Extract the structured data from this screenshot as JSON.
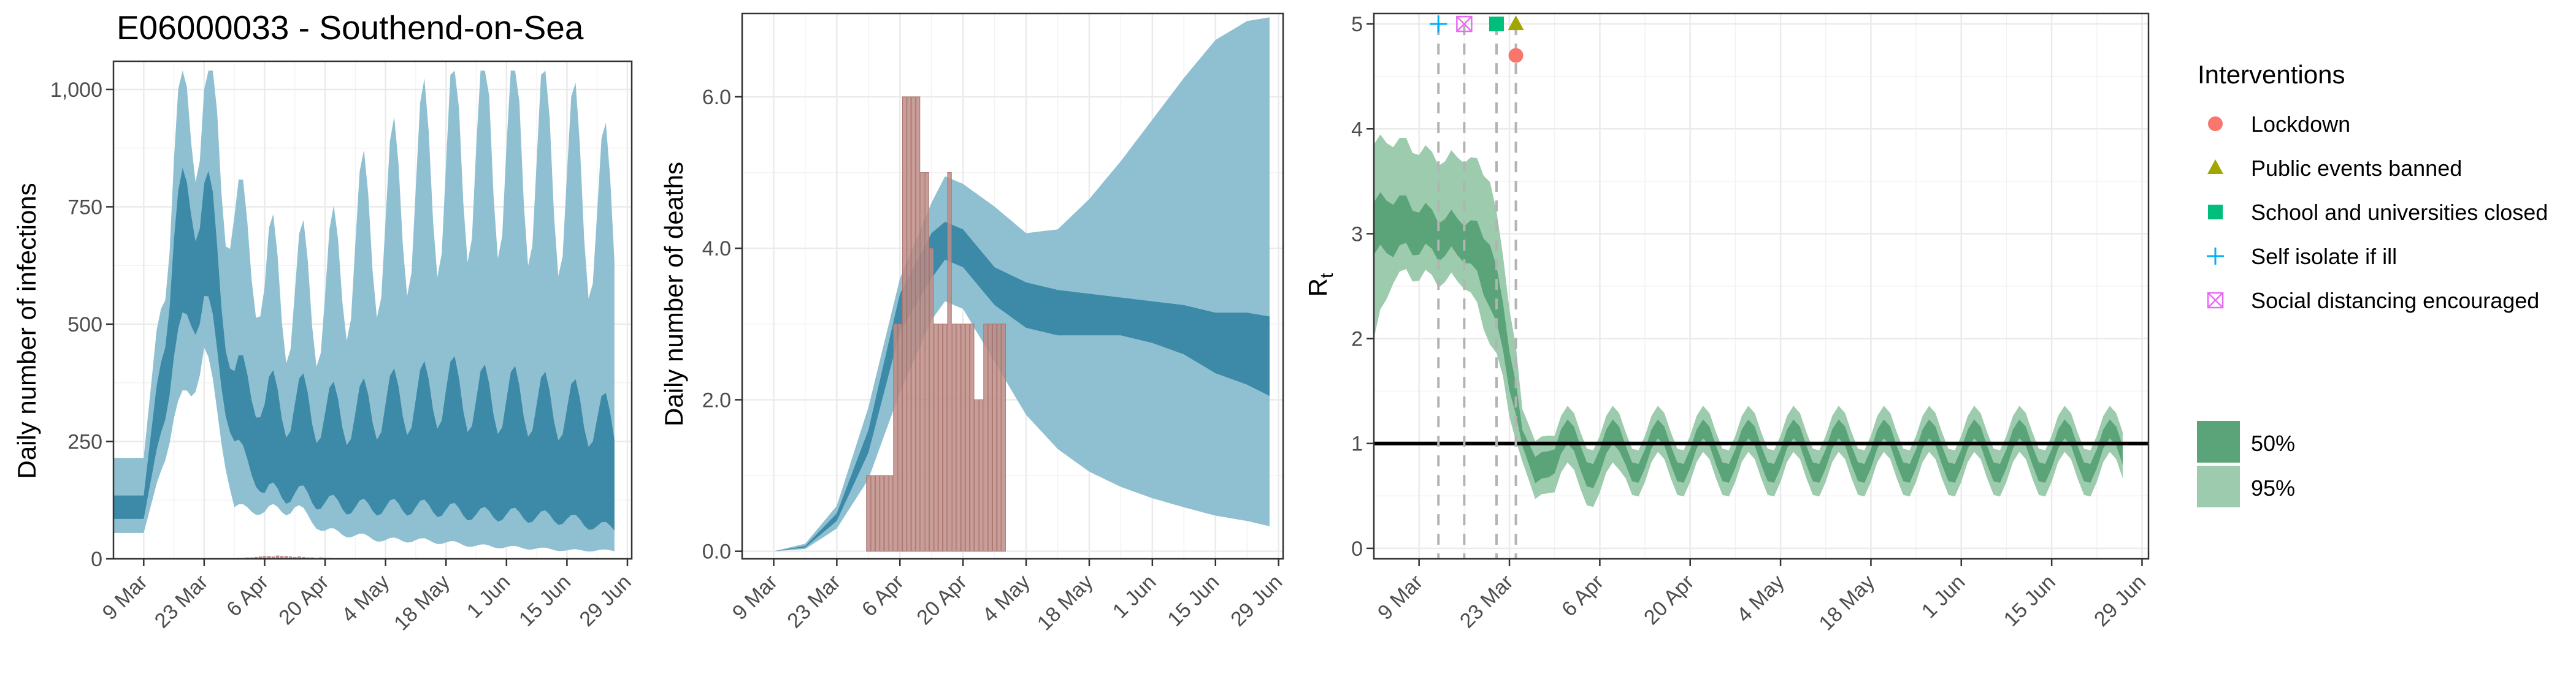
{
  "title": "E06000033 - Southend-on-Sea",
  "x_ticks": [
    "9 Mar",
    "23 Mar",
    "6 Apr",
    "20 Apr",
    "4 May",
    "18 May",
    "1 Jun",
    "15 Jun",
    "29 Jun"
  ],
  "colors": {
    "band95": "#8fc0d1",
    "band50": "#3d8aa8",
    "bars": "#bf8c86",
    "rt95": "#9ccbad",
    "rt50": "#5ba378",
    "panel_border": "#333333",
    "grid": "#ebebeb",
    "lockdown": "#f8766d",
    "public_events": "#a3a500",
    "schools": "#00bf7d",
    "self_isolate": "#00b0f6",
    "social_distancing": "#e76bf3"
  },
  "legend": {
    "interventions_title": "Interventions",
    "interventions": [
      {
        "label": "Lockdown",
        "icon": "circle-icon",
        "color_key": "lockdown"
      },
      {
        "label": "Public events banned",
        "icon": "triangle-icon",
        "color_key": "public_events"
      },
      {
        "label": "School and universities closed",
        "icon": "square-icon",
        "color_key": "schools"
      },
      {
        "label": "Self isolate if ill",
        "icon": "plus-icon",
        "color_key": "self_isolate"
      },
      {
        "label": "Social distancing encouraged",
        "icon": "boxed-x-icon",
        "color_key": "social_distancing"
      }
    ],
    "bands": [
      {
        "label": "50%",
        "color_key": "rt50"
      },
      {
        "label": "95%",
        "color_key": "rt95"
      }
    ]
  },
  "chart_data": [
    {
      "id": "infections",
      "type": "area",
      "title": "E06000033 - Southend-on-Sea",
      "xlabel": "",
      "ylabel": "Daily number of infections",
      "x_range": [
        "2020-03-02",
        "2020-06-30"
      ],
      "ylim": [
        0,
        1060
      ],
      "y_ticks": [
        0,
        250,
        500,
        750,
        1000
      ],
      "y_tick_labels": [
        "0",
        "250",
        "500",
        "750",
        "1,000"
      ],
      "grid": true,
      "bands_weekly_anchor": {
        "dates": [
          "2020-03-02",
          "2020-03-09",
          "2020-03-16",
          "2020-03-20",
          "2020-03-23",
          "2020-03-30",
          "2020-04-06",
          "2020-04-13",
          "2020-04-20",
          "2020-04-27",
          "2020-05-04",
          "2020-05-11",
          "2020-05-18",
          "2020-05-25",
          "2020-06-01",
          "2020-06-08",
          "2020-06-15",
          "2020-06-22",
          "2020-06-26"
        ],
        "lo95": [
          55,
          55,
          300,
          360,
          450,
          110,
          100,
          110,
          60,
          50,
          40,
          40,
          35,
          28,
          25,
          22,
          18,
          18,
          17
        ],
        "hi95": [
          215,
          215,
          850,
          960,
          1000,
          730,
          580,
          570,
          560,
          670,
          720,
          790,
          840,
          880,
          880,
          850,
          820,
          740,
          720
        ],
        "lo50": [
          85,
          85,
          430,
          520,
          560,
          250,
          140,
          140,
          120,
          110,
          110,
          110,
          105,
          95,
          95,
          90,
          85,
          70,
          65
        ],
        "hi50": [
          135,
          135,
          680,
          780,
          800,
          400,
          330,
          330,
          310,
          310,
          330,
          340,
          360,
          340,
          340,
          330,
          320,
          300,
          280
        ]
      },
      "deaths_bars": {
        "dates": [
          "2020-03-30",
          "2020-03-31",
          "2020-04-01",
          "2020-04-02",
          "2020-04-03",
          "2020-04-04",
          "2020-04-05",
          "2020-04-06",
          "2020-04-07",
          "2020-04-08",
          "2020-04-09",
          "2020-04-10",
          "2020-04-11",
          "2020-04-12",
          "2020-04-13",
          "2020-04-14",
          "2020-04-15",
          "2020-04-16",
          "2020-04-17",
          "2020-04-18",
          "2020-04-19",
          "2020-04-20",
          "2020-04-21",
          "2020-04-22",
          "2020-04-23",
          "2020-04-24",
          "2020-04-25"
        ],
        "values": [
          1,
          2,
          2,
          3,
          3,
          4,
          5,
          6,
          6,
          5,
          7,
          6,
          6,
          5,
          4,
          5,
          4,
          3,
          3,
          2,
          3,
          2,
          2,
          1,
          1,
          1,
          1
        ]
      }
    },
    {
      "id": "deaths",
      "type": "area",
      "xlabel": "",
      "ylabel": "Daily number of deaths",
      "x_range": [
        "2020-03-02",
        "2020-06-30"
      ],
      "ylim": [
        -0.1,
        7.1
      ],
      "y_ticks": [
        0,
        2,
        4,
        6
      ],
      "y_tick_labels": [
        "0.0",
        "2.0",
        "4.0",
        "6.0"
      ],
      "grid": true,
      "band_anchors": {
        "dates": [
          "2020-03-09",
          "2020-03-16",
          "2020-03-23",
          "2020-03-30",
          "2020-04-06",
          "2020-04-13",
          "2020-04-16",
          "2020-04-20",
          "2020-04-27",
          "2020-05-04",
          "2020-05-11",
          "2020-05-18",
          "2020-05-25",
          "2020-06-01",
          "2020-06-08",
          "2020-06-15",
          "2020-06-22",
          "2020-06-27"
        ],
        "lo95": [
          0.0,
          0.03,
          0.3,
          0.95,
          2.1,
          3.05,
          3.3,
          3.2,
          2.5,
          1.8,
          1.35,
          1.05,
          0.85,
          0.7,
          0.58,
          0.47,
          0.4,
          0.33
        ],
        "hi95": [
          0.0,
          0.1,
          0.6,
          1.9,
          3.6,
          4.6,
          4.95,
          4.85,
          4.55,
          4.2,
          4.25,
          4.65,
          5.15,
          5.7,
          6.25,
          6.75,
          7.0,
          7.05
        ],
        "lo50": [
          0.0,
          0.05,
          0.4,
          1.3,
          2.9,
          3.6,
          3.85,
          3.75,
          3.25,
          2.95,
          2.85,
          2.85,
          2.85,
          2.75,
          2.6,
          2.35,
          2.2,
          2.05
        ],
        "hi50": [
          0.0,
          0.07,
          0.5,
          1.6,
          3.4,
          4.2,
          4.35,
          4.25,
          3.75,
          3.55,
          3.45,
          3.4,
          3.35,
          3.3,
          3.25,
          3.15,
          3.15,
          3.1
        ]
      },
      "bars": {
        "dates": [
          "2020-03-30",
          "2020-03-31",
          "2020-04-01",
          "2020-04-02",
          "2020-04-03",
          "2020-04-04",
          "2020-04-05",
          "2020-04-06",
          "2020-04-07",
          "2020-04-08",
          "2020-04-09",
          "2020-04-10",
          "2020-04-11",
          "2020-04-12",
          "2020-04-13",
          "2020-04-14",
          "2020-04-15",
          "2020-04-16",
          "2020-04-17",
          "2020-04-18",
          "2020-04-19",
          "2020-04-20",
          "2020-04-21",
          "2020-04-22",
          "2020-04-23",
          "2020-04-24",
          "2020-04-25",
          "2020-04-26",
          "2020-04-27",
          "2020-04-28",
          "2020-04-29"
        ],
        "values": [
          1,
          1,
          1,
          1,
          1,
          1,
          3,
          3,
          6,
          6,
          6,
          6,
          5,
          5,
          4,
          3,
          3,
          3,
          5,
          3,
          3,
          3,
          3,
          3,
          2,
          2,
          3,
          3,
          3,
          3,
          3
        ]
      }
    },
    {
      "id": "rt",
      "type": "area",
      "xlabel": "",
      "ylabel": "R",
      "ylabel_subscript": "t",
      "x_range": [
        "2020-03-02",
        "2020-06-30"
      ],
      "ylim": [
        -0.1,
        5.1
      ],
      "y_ticks": [
        0,
        1,
        2,
        3,
        4,
        5
      ],
      "y_tick_labels": [
        "0",
        "1",
        "2",
        "3",
        "4",
        "5"
      ],
      "grid": true,
      "reference_line": 1,
      "band_anchors": {
        "dates": [
          "2020-03-02",
          "2020-03-05",
          "2020-03-09",
          "2020-03-13",
          "2020-03-16",
          "2020-03-20",
          "2020-03-22",
          "2020-03-24",
          "2020-03-25",
          "2020-03-27",
          "2020-03-29"
        ],
        "lo95": [
          2.0,
          2.6,
          2.6,
          2.55,
          2.55,
          2.0,
          1.6,
          1.05,
          0.75,
          0.55,
          0.45
        ],
        "hi95": [
          3.85,
          3.9,
          3.8,
          3.7,
          3.75,
          3.55,
          2.75,
          1.95,
          1.25,
          1.1,
          1.0
        ],
        "lo50": [
          2.8,
          2.85,
          2.85,
          2.8,
          2.8,
          2.35,
          1.85,
          1.3,
          0.9,
          0.7,
          0.6
        ],
        "hi50": [
          3.3,
          3.35,
          3.25,
          3.15,
          3.15,
          2.95,
          2.3,
          1.6,
          1.05,
          0.95,
          0.85
        ]
      },
      "after_start": "2020-03-29",
      "interventions": [
        {
          "label": "Self isolate if ill",
          "date": "2020-03-12",
          "y": 5.0
        },
        {
          "label": "Social distancing encouraged",
          "date": "2020-03-16",
          "y": 5.0
        },
        {
          "label": "School and universities closed",
          "date": "2020-03-21",
          "y": 5.0
        },
        {
          "label": "Public events banned",
          "date": "2020-03-24",
          "y": 5.0
        },
        {
          "label": "Lockdown",
          "date": "2020-03-24",
          "y": 4.7
        }
      ]
    }
  ]
}
